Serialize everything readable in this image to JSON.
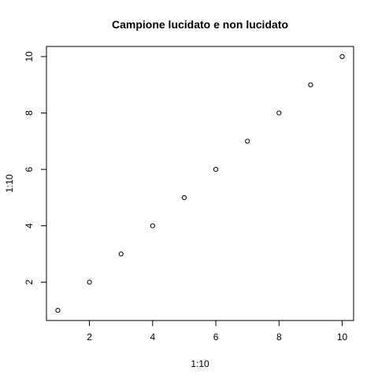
{
  "chart_data": {
    "type": "scatter",
    "title": "Campione lucidato e non lucidato",
    "xlabel": "1:10",
    "ylabel": "1:10",
    "x": [
      1,
      2,
      3,
      4,
      5,
      6,
      7,
      8,
      9,
      10
    ],
    "y": [
      1,
      2,
      3,
      4,
      5,
      6,
      7,
      8,
      9,
      10
    ],
    "xlim": [
      0.64,
      10.36
    ],
    "ylim": [
      0.64,
      10.36
    ],
    "xticks": [
      2,
      4,
      6,
      8,
      10
    ],
    "yticks": [
      2,
      4,
      6,
      8,
      10
    ],
    "grid": false,
    "marker": "open-circle"
  }
}
